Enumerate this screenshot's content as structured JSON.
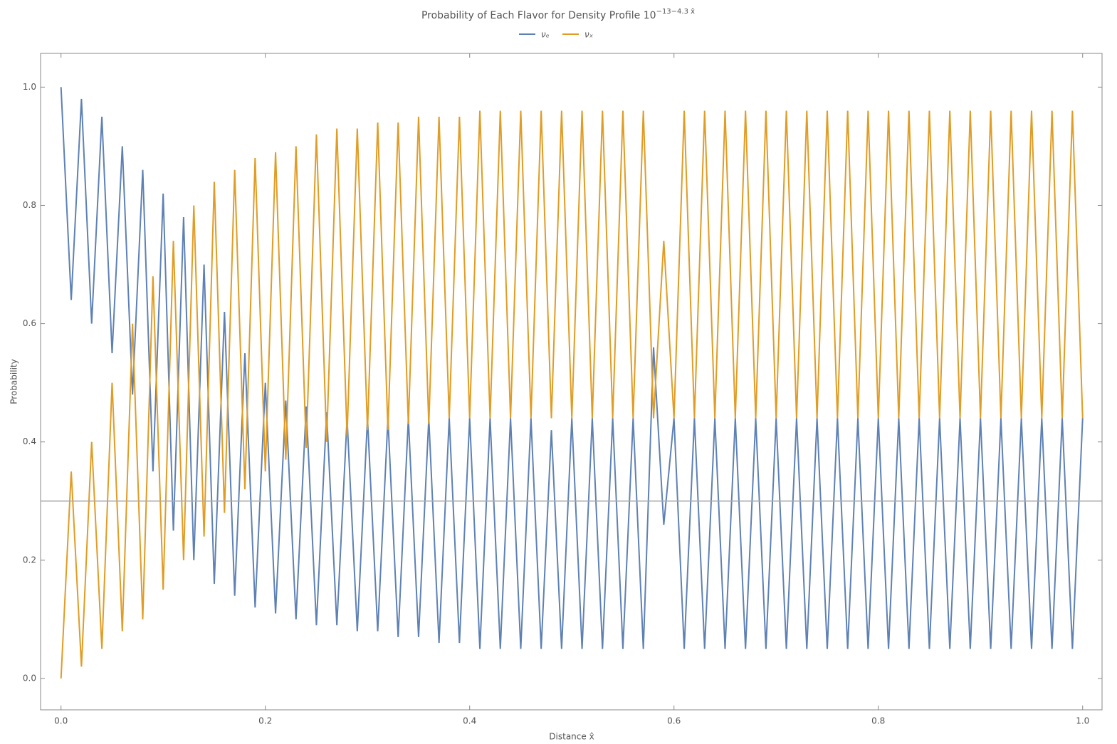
{
  "chart_data": {
    "type": "line",
    "title": "Probability of Each Flavor for Density Profile 10",
    "title_superscript": "−13−4.3 x̂",
    "x_label": "Distance x̂",
    "y_label": "Probability",
    "x": [
      0,
      0.01,
      0.02,
      0.03,
      0.04,
      0.05,
      0.06,
      0.07,
      0.08,
      0.09,
      0.1,
      0.11,
      0.12,
      0.13,
      0.14,
      0.15,
      0.16,
      0.17,
      0.18,
      0.19,
      0.2,
      0.21,
      0.22,
      0.23,
      0.24,
      0.25,
      0.26,
      0.27,
      0.28,
      0.29,
      0.3,
      0.31,
      0.32,
      0.33,
      0.34,
      0.35,
      0.36,
      0.37,
      0.38,
      0.39,
      0.4,
      0.41,
      0.42,
      0.43,
      0.44,
      0.45,
      0.46,
      0.47,
      0.48,
      0.49,
      0.5,
      0.51,
      0.52,
      0.53,
      0.54,
      0.55,
      0.56,
      0.57,
      0.58,
      0.59,
      0.6,
      0.61,
      0.62,
      0.63,
      0.64,
      0.65,
      0.66,
      0.67,
      0.68,
      0.69,
      0.7,
      0.71,
      0.72,
      0.73,
      0.74,
      0.75,
      0.76,
      0.77,
      0.78,
      0.79,
      0.8,
      0.81,
      0.82,
      0.83,
      0.84,
      0.85,
      0.86,
      0.87,
      0.88,
      0.89,
      0.9,
      0.91,
      0.92,
      0.93,
      0.94,
      0.95,
      0.96,
      0.97,
      0.98,
      0.99,
      1
    ],
    "series": [
      {
        "name": "νₑ",
        "color": "#5e81b5",
        "values": [
          1.0,
          0.64,
          0.98,
          0.6,
          0.95,
          0.55,
          0.9,
          0.48,
          0.86,
          0.35,
          0.82,
          0.25,
          0.78,
          0.2,
          0.7,
          0.16,
          0.62,
          0.14,
          0.55,
          0.12,
          0.5,
          0.11,
          0.47,
          0.1,
          0.46,
          0.09,
          0.45,
          0.09,
          0.44,
          0.08,
          0.44,
          0.08,
          0.44,
          0.07,
          0.44,
          0.07,
          0.44,
          0.06,
          0.44,
          0.06,
          0.44,
          0.05,
          0.44,
          0.05,
          0.44,
          0.05,
          0.44,
          0.05,
          0.42,
          0.05,
          0.44,
          0.05,
          0.44,
          0.05,
          0.44,
          0.05,
          0.44,
          0.05,
          0.56,
          0.26,
          0.44,
          0.05,
          0.44,
          0.05,
          0.44,
          0.05,
          0.44,
          0.05,
          0.44,
          0.05,
          0.44,
          0.05,
          0.44,
          0.05,
          0.44,
          0.05,
          0.44,
          0.05,
          0.44,
          0.05,
          0.44,
          0.05,
          0.44,
          0.05,
          0.44,
          0.05,
          0.44,
          0.05,
          0.44,
          0.05,
          0.44,
          0.05,
          0.44,
          0.05,
          0.44,
          0.05,
          0.44,
          0.05,
          0.44,
          0.05,
          0.44
        ]
      },
      {
        "name": "νₓ",
        "color": "#e19c24",
        "values": [
          0.0,
          0.35,
          0.02,
          0.4,
          0.05,
          0.5,
          0.08,
          0.6,
          0.1,
          0.68,
          0.15,
          0.74,
          0.2,
          0.8,
          0.24,
          0.84,
          0.28,
          0.86,
          0.32,
          0.88,
          0.35,
          0.89,
          0.37,
          0.9,
          0.39,
          0.92,
          0.4,
          0.93,
          0.41,
          0.93,
          0.42,
          0.94,
          0.42,
          0.94,
          0.43,
          0.95,
          0.43,
          0.95,
          0.44,
          0.95,
          0.44,
          0.96,
          0.44,
          0.96,
          0.44,
          0.96,
          0.44,
          0.96,
          0.44,
          0.96,
          0.44,
          0.96,
          0.44,
          0.96,
          0.44,
          0.96,
          0.44,
          0.96,
          0.44,
          0.74,
          0.44,
          0.96,
          0.44,
          0.96,
          0.44,
          0.96,
          0.44,
          0.96,
          0.44,
          0.96,
          0.44,
          0.96,
          0.44,
          0.96,
          0.44,
          0.96,
          0.44,
          0.96,
          0.44,
          0.96,
          0.44,
          0.96,
          0.44,
          0.96,
          0.44,
          0.96,
          0.44,
          0.96,
          0.44,
          0.96,
          0.44,
          0.96,
          0.44,
          0.96,
          0.44,
          0.96,
          0.44,
          0.96,
          0.44,
          0.96,
          0.44
        ]
      }
    ],
    "reference_line": 0.3,
    "xlim": [
      -0.02,
      1.019
    ],
    "ylim": [
      -0.053,
      1.057
    ],
    "xticks": [
      {
        "value": 0,
        "label": "0.0"
      },
      0.2,
      0.4,
      0.6,
      0.8,
      {
        "value": 1,
        "label": "1.0"
      }
    ],
    "yticks": [
      {
        "value": 0,
        "label": "0.0"
      },
      0.2,
      0.4,
      0.6,
      0.8,
      {
        "value": 1,
        "label": "1.0"
      }
    ],
    "legend": "top"
  }
}
